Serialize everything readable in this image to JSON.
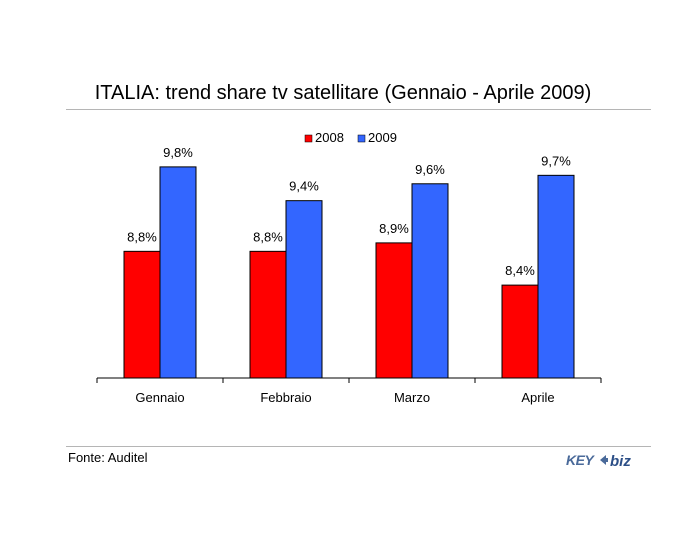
{
  "chart_data": {
    "type": "bar",
    "title": "ITALIA: trend share tv satellitare (Gennaio - Aprile 2009)",
    "categories": [
      "Gennaio",
      "Febbraio",
      "Marzo",
      "Aprile"
    ],
    "series": [
      {
        "name": "2008",
        "values": [
          8.8,
          8.8,
          8.9,
          8.4
        ],
        "labels": [
          "8,8%",
          "8,8%",
          "8,9%",
          "8,4%"
        ],
        "color": "#ff0000"
      },
      {
        "name": "2009",
        "values": [
          9.8,
          9.4,
          9.6,
          9.7
        ],
        "labels": [
          "9,8%",
          "9,4%",
          "9,6%",
          "9,7%"
        ],
        "color": "#3366ff"
      }
    ],
    "xlabel": "",
    "ylabel": "",
    "ylim": [
      7.3,
      10.0
    ],
    "grid": false,
    "legend": "top-center",
    "legend_entries": [
      "2008",
      "2009"
    ]
  },
  "footer": {
    "source": "Fonte: Auditel",
    "logo_text": "KEY4biz"
  }
}
